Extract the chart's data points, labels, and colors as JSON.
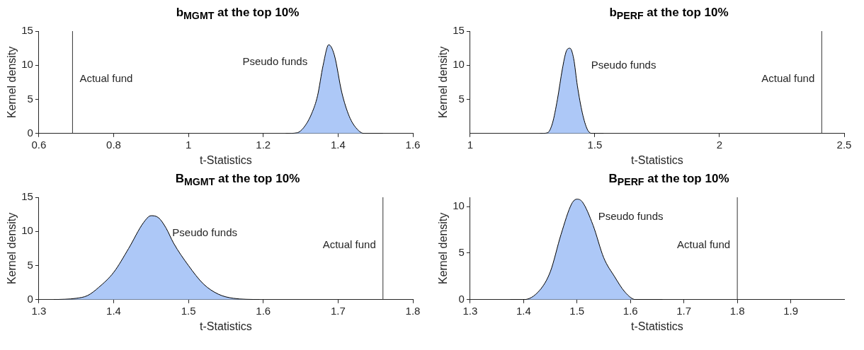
{
  "chart_data": [
    {
      "type": "area",
      "title": "b$_{MGMT}$ at the top 10%",
      "xlabel": "t-Statistics",
      "ylabel": "Kernel density",
      "xlim": [
        0.6,
        1.6
      ],
      "xticks": [
        0.6,
        0.8,
        1,
        1.2,
        1.4,
        1.6
      ],
      "ylim": [
        0,
        15
      ],
      "yticks": [
        0,
        5,
        10,
        15
      ],
      "series": [
        {
          "color": "#adc8f7",
          "x": [
            1.26,
            1.29,
            1.31,
            1.33,
            1.345,
            1.36,
            1.375,
            1.39,
            1.41,
            1.43,
            1.45,
            1.47,
            1.52
          ],
          "values": [
            0,
            0.1,
            1,
            3,
            5.5,
            10,
            13,
            11.5,
            6,
            2.5,
            0.7,
            0,
            0
          ]
        }
      ],
      "ref_lines": [
        {
          "axis": "x",
          "value": 0.69,
          "label": "Actual fund",
          "color": "#333333"
        }
      ],
      "annotations": [
        "Pseudo funds"
      ]
    },
    {
      "type": "area",
      "title": "b$_{PERF}$ at the top 10%",
      "xlabel": "t-Statistics",
      "ylabel": "Kernel density",
      "xlim": [
        1,
        2.5
      ],
      "xticks": [
        1,
        1.5,
        2,
        2.5
      ],
      "ylim": [
        0,
        15
      ],
      "yticks": [
        5,
        10,
        15
      ],
      "series": [
        {
          "color": "#adc8f7",
          "x": [
            1.28,
            1.31,
            1.33,
            1.35,
            1.37,
            1.385,
            1.4,
            1.415,
            1.43,
            1.45,
            1.47,
            1.49,
            1.535
          ],
          "values": [
            0,
            0.1,
            1.5,
            5,
            9.5,
            12,
            12.5,
            11,
            7,
            3,
            0.6,
            0,
            0
          ]
        }
      ],
      "ref_lines": [
        {
          "axis": "x",
          "value": 2.41,
          "label": "Actual fund",
          "color": "#333333"
        }
      ],
      "annotations": [
        "Pseudo funds"
      ]
    },
    {
      "type": "area",
      "title": "B$_{MGMT}$ at the top 10%",
      "xlabel": "t-Statistics",
      "ylabel": "Kernel density",
      "xlim": [
        1.3,
        1.8
      ],
      "xticks": [
        1.3,
        1.4,
        1.5,
        1.6,
        1.7,
        1.8
      ],
      "ylim": [
        0,
        15
      ],
      "yticks": [
        0,
        5,
        10,
        15
      ],
      "series": [
        {
          "color": "#adc8f7",
          "x": [
            1.32,
            1.35,
            1.365,
            1.38,
            1.4,
            1.42,
            1.44,
            1.45,
            1.46,
            1.47,
            1.48,
            1.5,
            1.52,
            1.54,
            1.56,
            1.595
          ],
          "values": [
            0,
            0.2,
            0.6,
            1.8,
            4,
            7.5,
            11.3,
            12.3,
            12,
            10.5,
            8.3,
            5,
            2.3,
            0.8,
            0.2,
            0
          ]
        }
      ],
      "ref_lines": [
        {
          "axis": "x",
          "value": 1.76,
          "label": "Actual fund",
          "color": "#333333"
        }
      ],
      "annotations": [
        "Pseudo funds"
      ]
    },
    {
      "type": "area",
      "title": "B$_{PERF}$ at the top 10%",
      "xlabel": "t-Statistics",
      "ylabel": "Kernel density",
      "xlim": [
        1.3,
        2.0
      ],
      "xticks": [
        1.3,
        1.4,
        1.5,
        1.6,
        1.7,
        1.8,
        1.9
      ],
      "ylim": [
        0,
        11
      ],
      "yticks": [
        0,
        5,
        10
      ],
      "series": [
        {
          "color": "#adc8f7",
          "x": [
            1.375,
            1.4,
            1.43,
            1.45,
            1.47,
            1.49,
            1.5,
            1.51,
            1.53,
            1.55,
            1.57,
            1.59,
            1.61,
            1.66
          ],
          "values": [
            0,
            0,
            1,
            3,
            7,
            10.3,
            10.8,
            10.5,
            8,
            4.5,
            2.5,
            0.8,
            0,
            0
          ]
        }
      ],
      "ref_lines": [
        {
          "axis": "x",
          "value": 1.8,
          "label": "Actual fund",
          "color": "#333333"
        }
      ],
      "annotations": [
        "Pseudo funds"
      ]
    }
  ]
}
